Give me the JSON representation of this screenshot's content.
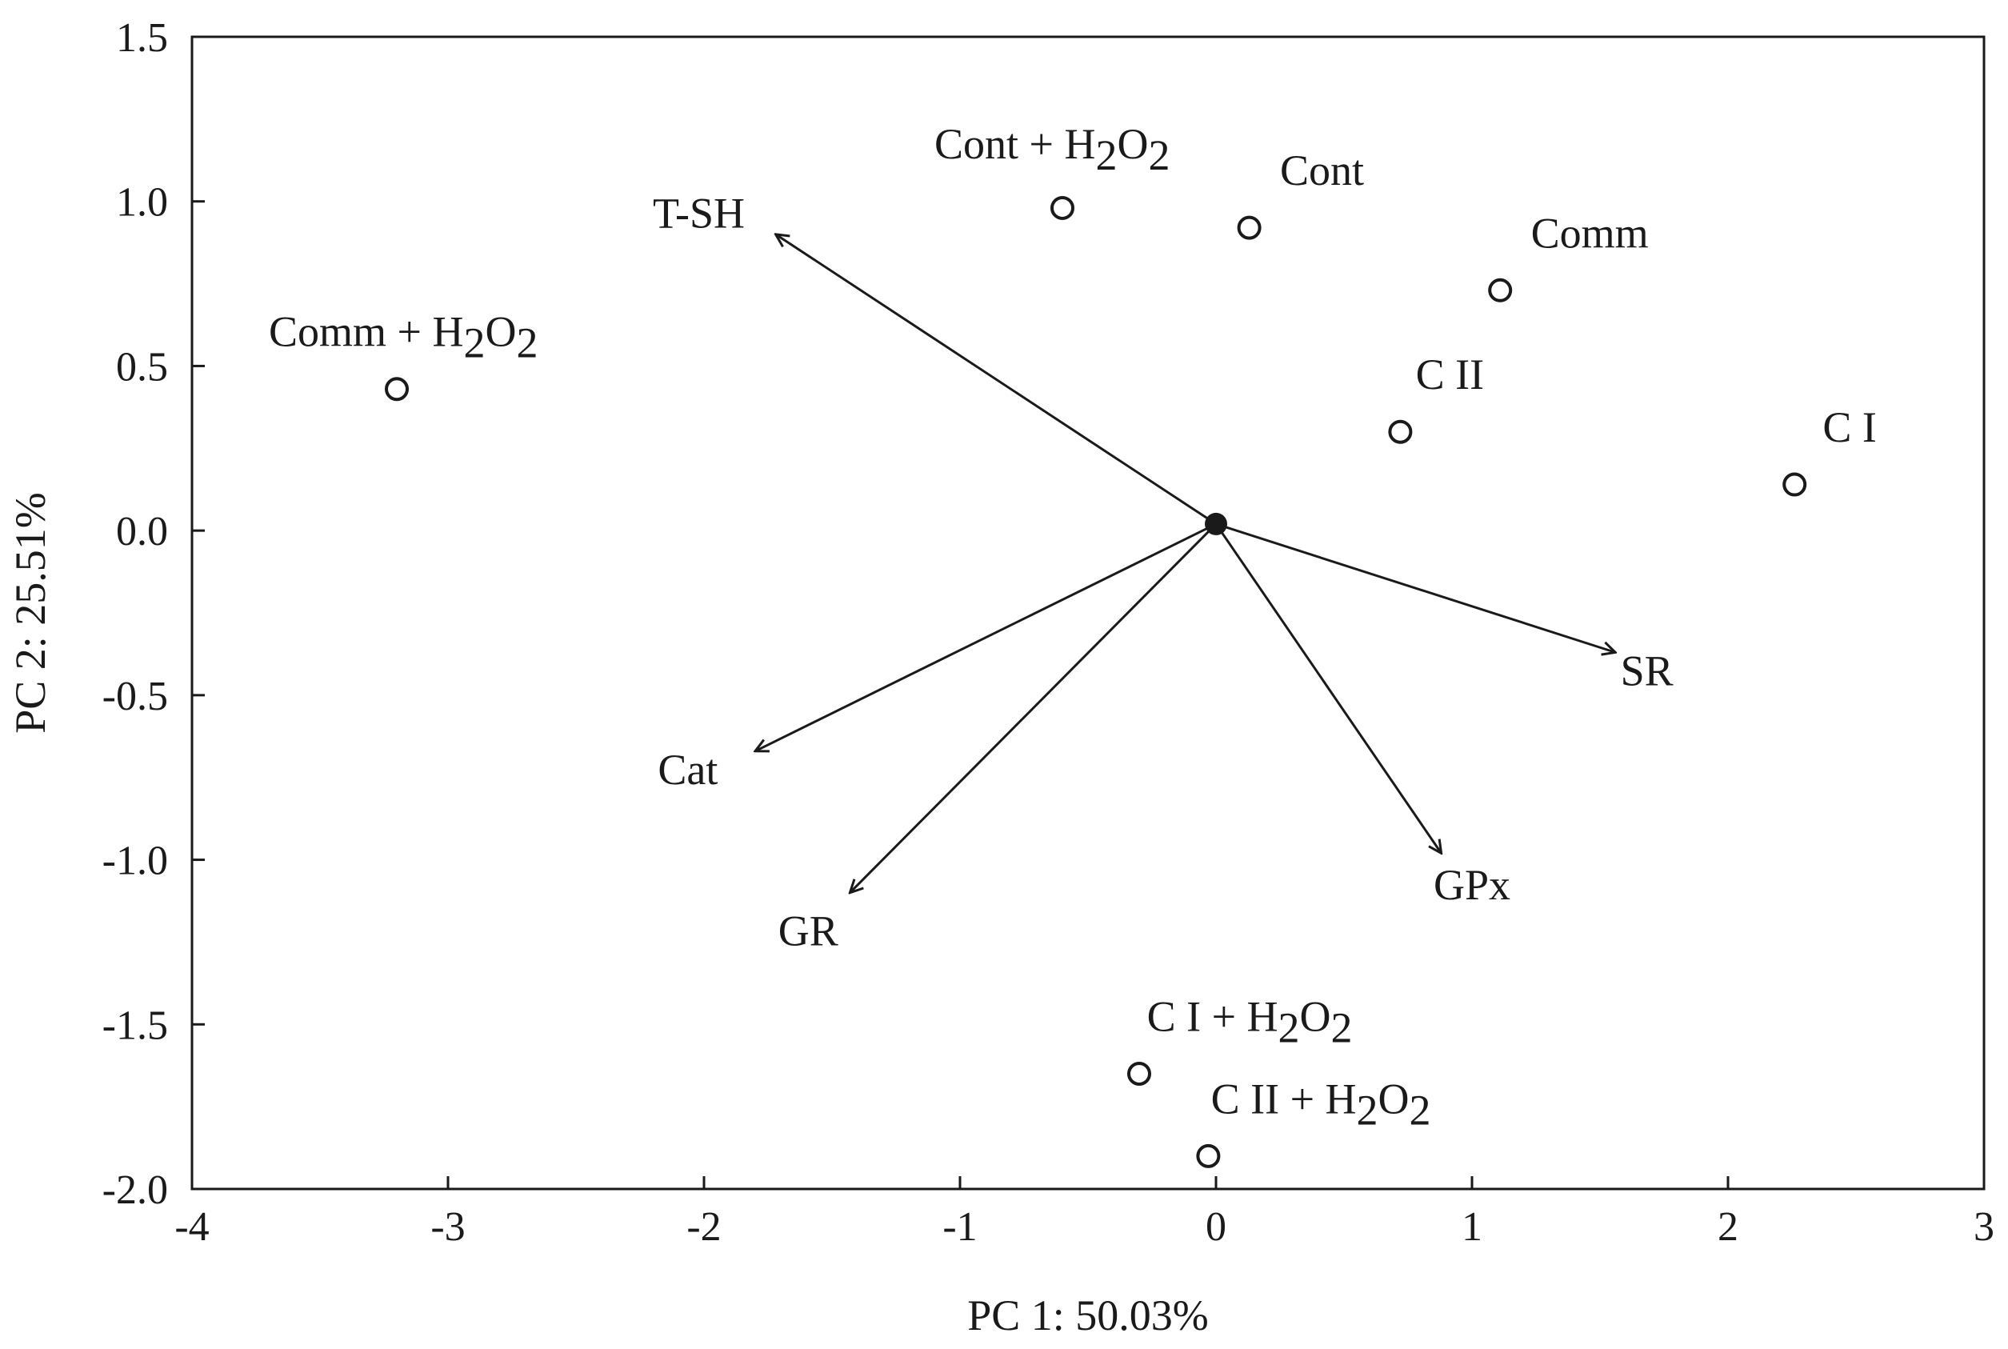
{
  "chart_data": {
    "type": "scatter",
    "title": "",
    "xlabel": "PC 1: 50.03%",
    "ylabel": "PC 2: 25.51%",
    "xlim": [
      -4,
      3
    ],
    "ylim": [
      -2.0,
      1.5
    ],
    "xticks": [
      {
        "value": -4,
        "label": "-4"
      },
      {
        "value": -3,
        "label": "-3"
      },
      {
        "value": -2,
        "label": "-2"
      },
      {
        "value": -1,
        "label": "-1"
      },
      {
        "value": 0,
        "label": "0"
      },
      {
        "value": 1,
        "label": "1"
      },
      {
        "value": 2,
        "label": "2"
      },
      {
        "value": 3,
        "label": "3"
      }
    ],
    "yticks": [
      {
        "value": 1.5,
        "label": "1.5"
      },
      {
        "value": 1.0,
        "label": "1.0"
      },
      {
        "value": 0.5,
        "label": "0.5"
      },
      {
        "value": 0.0,
        "label": "0.0"
      },
      {
        "value": -0.5,
        "label": "-0.5"
      },
      {
        "value": -1.0,
        "label": "-1.0"
      },
      {
        "value": -1.5,
        "label": "-1.5"
      },
      {
        "value": -2.0,
        "label": "-2.0"
      }
    ],
    "grid": false,
    "origin": {
      "x": 0,
      "y": 0.02
    },
    "points": [
      {
        "label": "Cont + H2O2",
        "text": "Cont + H",
        "sub": "2",
        "text2": "O",
        "sub2": "2",
        "x": -0.6,
        "y": 0.98,
        "lx": -1.1,
        "ly": 1.13
      },
      {
        "label": "Cont",
        "text": "Cont",
        "x": 0.13,
        "y": 0.92,
        "lx": 0.25,
        "ly": 1.05
      },
      {
        "label": "Comm",
        "text": "Comm",
        "x": 1.11,
        "y": 0.73,
        "lx": 1.23,
        "ly": 0.86
      },
      {
        "label": "Comm + H2O2",
        "text": "Comm + H",
        "sub": "2",
        "text2": "O",
        "sub2": "2",
        "x": -3.2,
        "y": 0.43,
        "lx": -3.7,
        "ly": 0.56
      },
      {
        "label": "C II",
        "text": "C II",
        "x": 0.72,
        "y": 0.3,
        "lx": 0.78,
        "ly": 0.43
      },
      {
        "label": "C I",
        "text": "C I",
        "x": 2.26,
        "y": 0.14,
        "lx": 2.37,
        "ly": 0.27
      },
      {
        "label": "C I + H2O2",
        "text": "C I + H",
        "sub": "2",
        "text2": "O",
        "sub2": "2",
        "x": -0.3,
        "y": -1.65,
        "lx": -0.27,
        "ly": -1.52
      },
      {
        "label": "C II + H2O2",
        "text": "C II + H",
        "sub": "2",
        "text2": "O",
        "sub2": "2",
        "x": -0.03,
        "y": -1.9,
        "lx": -0.02,
        "ly": -1.77
      }
    ],
    "loadings": [
      {
        "label": "T-SH",
        "x": -1.72,
        "y": 0.9,
        "lx": -2.2,
        "ly": 0.92
      },
      {
        "label": "SR",
        "x": 1.56,
        "y": -0.37,
        "lx": 1.58,
        "ly": -0.47
      },
      {
        "label": "Cat",
        "x": -1.8,
        "y": -0.67,
        "lx": -2.18,
        "ly": -0.77
      },
      {
        "label": "GR",
        "x": -1.43,
        "y": -1.1,
        "lx": -1.71,
        "ly": -1.26
      },
      {
        "label": "GPx",
        "x": 0.88,
        "y": -0.98,
        "lx": 0.85,
        "ly": -1.12
      }
    ]
  }
}
